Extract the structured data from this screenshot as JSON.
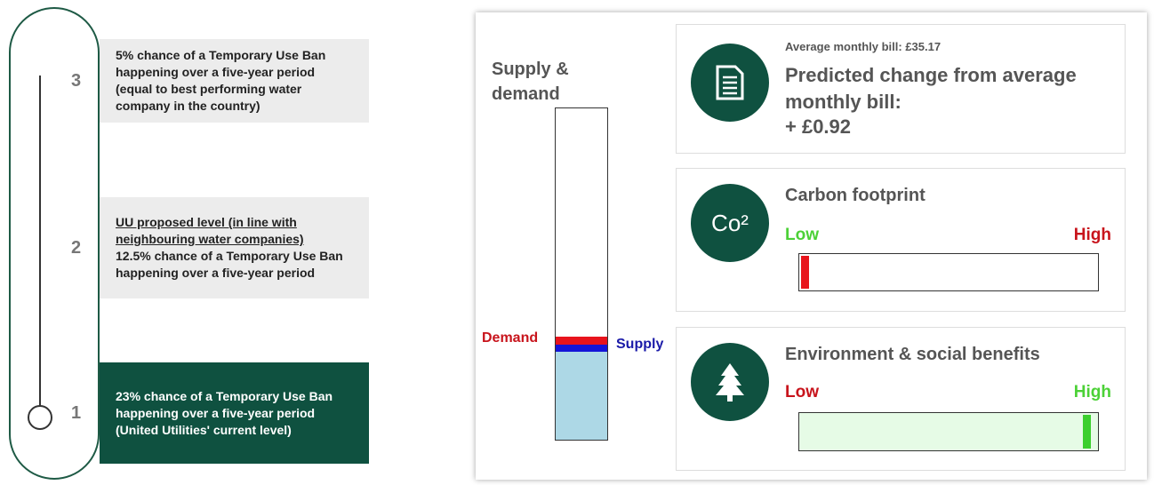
{
  "slider": {
    "levels": [
      {
        "number": "3",
        "text": "5% chance of a Temporary Use Ban happening over a five-year period (equal to best performing water company in the country)"
      },
      {
        "number": "2",
        "heading": "UU proposed level (in line with neighbouring water companies)",
        "text": "12.5% chance of a Temporary Use Ban happening over a five-year period"
      },
      {
        "number": "1",
        "text": "23% chance of a Temporary Use Ban happening over a five-year period (United Utilities' current level)"
      }
    ]
  },
  "supply_demand": {
    "title": "Supply & demand",
    "demand_label": "Demand",
    "supply_label": "Supply"
  },
  "bill": {
    "average": "Average monthly bill: £35.17",
    "heading": "Predicted change from average monthly bill:",
    "change": "+ £0.92"
  },
  "carbon": {
    "icon": "Co²",
    "title": "Carbon footprint",
    "low": "Low",
    "high": "High"
  },
  "environment": {
    "title": "Environment & social benefits",
    "low": "Low",
    "high": "High"
  }
}
